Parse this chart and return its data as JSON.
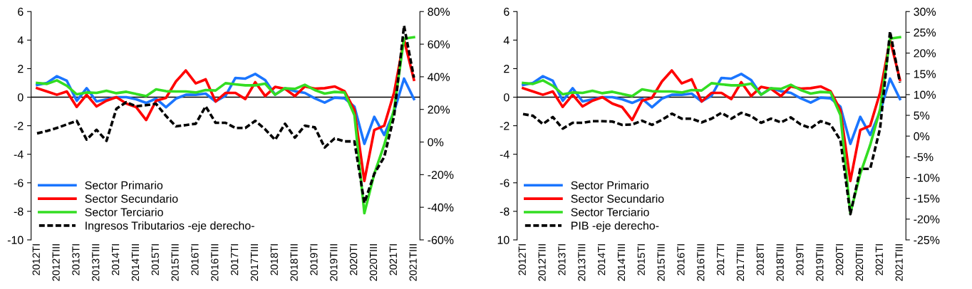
{
  "chart_data": [
    {
      "type": "line",
      "categories": [
        "2012TI",
        null,
        "2012TIII",
        null,
        "2013TI",
        null,
        "2013TIII",
        null,
        "2014TI",
        null,
        "2014TIII",
        null,
        "2015TI",
        null,
        "2015TIII",
        null,
        "2016TI",
        null,
        "2016TIII",
        null,
        "2017TI",
        null,
        "2017TIII",
        null,
        "2018TI",
        null,
        "2018TIII",
        null,
        "2019TI",
        null,
        "2019TIII",
        null,
        "2020TI",
        null,
        "2020TIII",
        null,
        "2021TI",
        null,
        "2021TIII"
      ],
      "ylim": [
        -10,
        6
      ],
      "yticks": [
        -10,
        -8,
        -6,
        -4,
        -2,
        0,
        2,
        4,
        6
      ],
      "y2lim": [
        -60,
        80
      ],
      "y2ticks": [
        {
          "value": -60,
          "label": "-60%"
        },
        {
          "value": -40,
          "label": "-40%"
        },
        {
          "value": -20,
          "label": "-20%"
        },
        {
          "value": 0,
          "label": "0%"
        },
        {
          "value": 20,
          "label": "20%"
        },
        {
          "value": 40,
          "label": "40%"
        },
        {
          "value": 60,
          "label": "60%"
        },
        {
          "value": 80,
          "label": "80%"
        }
      ],
      "grid": false,
      "legend": "bottom left",
      "marker": "none",
      "ref_lines": [
        {
          "axis": "y",
          "value": 0,
          "color": "#000000",
          "line_style": "solid"
        }
      ],
      "series": [
        {
          "name": "Sector Primario",
          "color": "#1a75ff",
          "line_style": "solid",
          "values": [
            0.85,
            1.0,
            1.47,
            1.15,
            -0.25,
            0.63,
            -0.3,
            -0.15,
            0,
            0,
            -0.15,
            -0.4,
            -0.1,
            -0.7,
            -0.1,
            0.17,
            0.17,
            0.25,
            -0.3,
            0.1,
            1.35,
            1.3,
            1.63,
            1.2,
            0.17,
            0.63,
            0.42,
            0.3,
            -0.08,
            -0.38,
            -0.03,
            -0.08,
            -0.67,
            -3.27,
            -1.38,
            -2.65,
            -1.0,
            1.3,
            -0.13
          ]
        },
        {
          "name": "Sector Secundario",
          "color": "#ff0000",
          "line_style": "solid",
          "values": [
            0.63,
            0.4,
            0.17,
            0.4,
            -0.68,
            0.17,
            -0.65,
            -0.25,
            0,
            -0.45,
            -0.7,
            -1.6,
            -0.25,
            -0.05,
            1.1,
            1.87,
            0.97,
            1.25,
            -0.3,
            0.3,
            0.3,
            -0.13,
            1.05,
            0.08,
            0.72,
            0.58,
            0.08,
            0.75,
            0.6,
            0.63,
            0.75,
            0.42,
            -0.9,
            -5.87,
            -2.3,
            -2.0,
            0.33,
            4.03,
            1.22
          ]
        },
        {
          "name": "Sector Terciario",
          "color": "#33dd22",
          "line_style": "solid",
          "values": [
            1.0,
            0.93,
            1.18,
            0.8,
            0.2,
            0.33,
            0.3,
            0.45,
            0.28,
            0.38,
            0.22,
            0.08,
            0.55,
            0.42,
            0.4,
            0.4,
            0.33,
            0.5,
            0.47,
            0.98,
            0.9,
            0.83,
            0.83,
            0.95,
            0.17,
            0.62,
            0.58,
            0.87,
            0.5,
            0.25,
            0.37,
            0.33,
            -1.26,
            -8.13,
            -5.37,
            -3.35,
            -0.83,
            4.1,
            4.2
          ]
        },
        {
          "name": "Ingresos Tributarios -eje derecho-",
          "color": "#000000",
          "line_style": "dashed",
          "axis": "y2",
          "values": [
            5.3,
            6.8,
            8.6,
            10.8,
            13,
            1.5,
            7.5,
            0.7,
            20.4,
            24.4,
            21.9,
            22.6,
            23.4,
            16,
            9.6,
            10.4,
            11.2,
            21.9,
            11.8,
            11.8,
            8.6,
            8.6,
            13,
            7.8,
            1.3,
            11.2,
            2.7,
            10,
            9,
            -3.3,
            2.2,
            0.4,
            0.4,
            -37.3,
            -19.5,
            -9.2,
            16,
            71.3,
            39.5
          ]
        }
      ]
    },
    {
      "type": "line",
      "categories": [
        "2012TI",
        null,
        "2012TIII",
        null,
        "2013TI",
        null,
        "2013TIII",
        null,
        "2014TI",
        null,
        "2014TIII",
        null,
        "2015TI",
        null,
        "2015TIII",
        null,
        "2016TI",
        null,
        "2016TIII",
        null,
        "2017TI",
        null,
        "2017TIII",
        null,
        "2018TI",
        null,
        "2018TIII",
        null,
        "2019TI",
        null,
        "2019TIII",
        null,
        "2020TI",
        null,
        "2020TIII",
        null,
        "2021TI",
        null,
        "2021TIII"
      ],
      "ylim": [
        -10,
        6
      ],
      "yticks": [
        {
          "value": -10,
          "label": "10"
        },
        -8,
        -6,
        -4,
        -2,
        0,
        2,
        4,
        6
      ],
      "y2lim": [
        -25,
        30
      ],
      "y2ticks": [
        {
          "value": -25,
          "label": "-25%"
        },
        {
          "value": -20,
          "label": "-20%"
        },
        {
          "value": -15,
          "label": "-15%"
        },
        {
          "value": -10,
          "label": "-10%"
        },
        {
          "value": -5,
          "label": "-5%"
        },
        {
          "value": 0,
          "label": "0%"
        },
        {
          "value": 5,
          "label": "5%"
        },
        {
          "value": 10,
          "label": "10%"
        },
        {
          "value": 15,
          "label": "15%"
        },
        {
          "value": 20,
          "label": "20%"
        },
        {
          "value": 25,
          "label": "25%"
        },
        {
          "value": 30,
          "label": "30%"
        }
      ],
      "grid": false,
      "legend": "bottom left",
      "marker": "none",
      "ref_lines": [
        {
          "axis": "y",
          "value": 0,
          "color": "#000000",
          "line_style": "solid"
        }
      ],
      "series": [
        {
          "name": "Sector Primario",
          "color": "#1a75ff",
          "line_style": "solid",
          "values": [
            0.85,
            1.0,
            1.47,
            1.15,
            -0.25,
            0.63,
            -0.3,
            -0.15,
            0,
            0,
            -0.15,
            -0.4,
            -0.1,
            -0.7,
            -0.1,
            0.17,
            0.17,
            0.25,
            -0.3,
            0.1,
            1.35,
            1.3,
            1.63,
            1.2,
            0.17,
            0.63,
            0.42,
            0.3,
            -0.08,
            -0.38,
            -0.03,
            -0.08,
            -0.67,
            -3.27,
            -1.38,
            -2.65,
            -1.0,
            1.3,
            -0.13
          ]
        },
        {
          "name": "Sector Secundario",
          "color": "#ff0000",
          "line_style": "solid",
          "values": [
            0.63,
            0.4,
            0.17,
            0.4,
            -0.68,
            0.17,
            -0.65,
            -0.25,
            0,
            -0.45,
            -0.7,
            -1.6,
            -0.25,
            -0.05,
            1.1,
            1.87,
            0.97,
            1.25,
            -0.3,
            0.3,
            0.3,
            -0.13,
            1.05,
            0.08,
            0.72,
            0.58,
            0.08,
            0.75,
            0.6,
            0.63,
            0.75,
            0.42,
            -0.9,
            -5.87,
            -2.3,
            -2.0,
            0.33,
            4.03,
            1.22
          ]
        },
        {
          "name": "Sector Terciario",
          "color": "#33dd22",
          "line_style": "solid",
          "values": [
            1.0,
            0.93,
            1.18,
            0.8,
            0.2,
            0.33,
            0.3,
            0.45,
            0.28,
            0.38,
            0.22,
            0.08,
            0.55,
            0.42,
            0.4,
            0.4,
            0.33,
            0.5,
            0.47,
            0.98,
            0.9,
            0.83,
            0.83,
            0.95,
            0.17,
            0.62,
            0.58,
            0.87,
            0.5,
            0.25,
            0.37,
            0.33,
            -1.26,
            -8.13,
            -5.37,
            -3.35,
            -0.83,
            4.1,
            4.2
          ]
        },
        {
          "name": "PIB -eje derecho-",
          "color": "#000000",
          "line_style": "dashed",
          "axis": "y2",
          "values": [
            5.3,
            4.9,
            2.9,
            4.6,
            1.8,
            3.2,
            3.2,
            3.6,
            3.6,
            3.5,
            2.7,
            2.8,
            3.7,
            2.7,
            3.9,
            5.4,
            4.2,
            4.2,
            3.3,
            4.2,
            5.6,
            4.2,
            5.6,
            4.8,
            3.2,
            4.2,
            3.3,
            4.5,
            2.8,
            1.9,
            3.6,
            2.8,
            -1.0,
            -18.8,
            -7.9,
            -7.9,
            1.9,
            25.2,
            12.9
          ]
        }
      ]
    }
  ]
}
